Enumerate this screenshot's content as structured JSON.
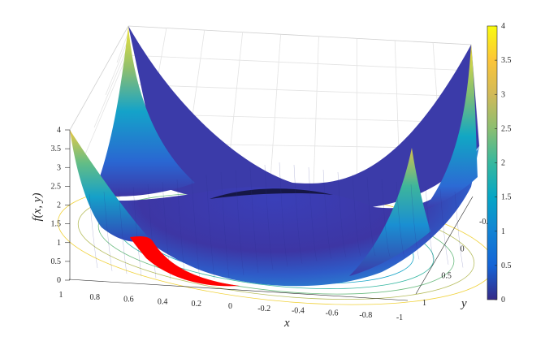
{
  "chart_data": {
    "type": "surface3d",
    "function_label": "f(x, y)",
    "xlabel": "x",
    "ylabel": "y",
    "zlabel": "f(x, y)",
    "xlim": [
      -1,
      1
    ],
    "ylim": [
      -1,
      1
    ],
    "zlim": [
      0,
      4
    ],
    "x_ticks": [
      "1",
      "0.8",
      "0.6",
      "0.4",
      "0.2",
      "0",
      "-0.2",
      "-0.4",
      "-0.6",
      "-0.8",
      "-1"
    ],
    "y_ticks": [
      "-0.5",
      "0",
      "0.5",
      "1"
    ],
    "z_ticks": [
      "0",
      "0.5",
      "1",
      "1.5",
      "2",
      "2.5",
      "3",
      "3.5",
      "4"
    ],
    "colorbar": {
      "colormap": "parula",
      "range": [
        0,
        4
      ],
      "ticks": [
        "0",
        "0.5",
        "1",
        "1.5",
        "2",
        "2.5",
        "3",
        "3.5",
        "4"
      ]
    },
    "surface_shape": "quartic bowl with ring-shaped minimum and raised corners",
    "corner_values": {
      "x1_y-1": 4,
      "x-1_y-1": 4,
      "x1_y1": 4,
      "x-1_y1": 2.6
    },
    "grid": true,
    "highlight_path_color": "#ff0000",
    "contour_projection": true
  }
}
